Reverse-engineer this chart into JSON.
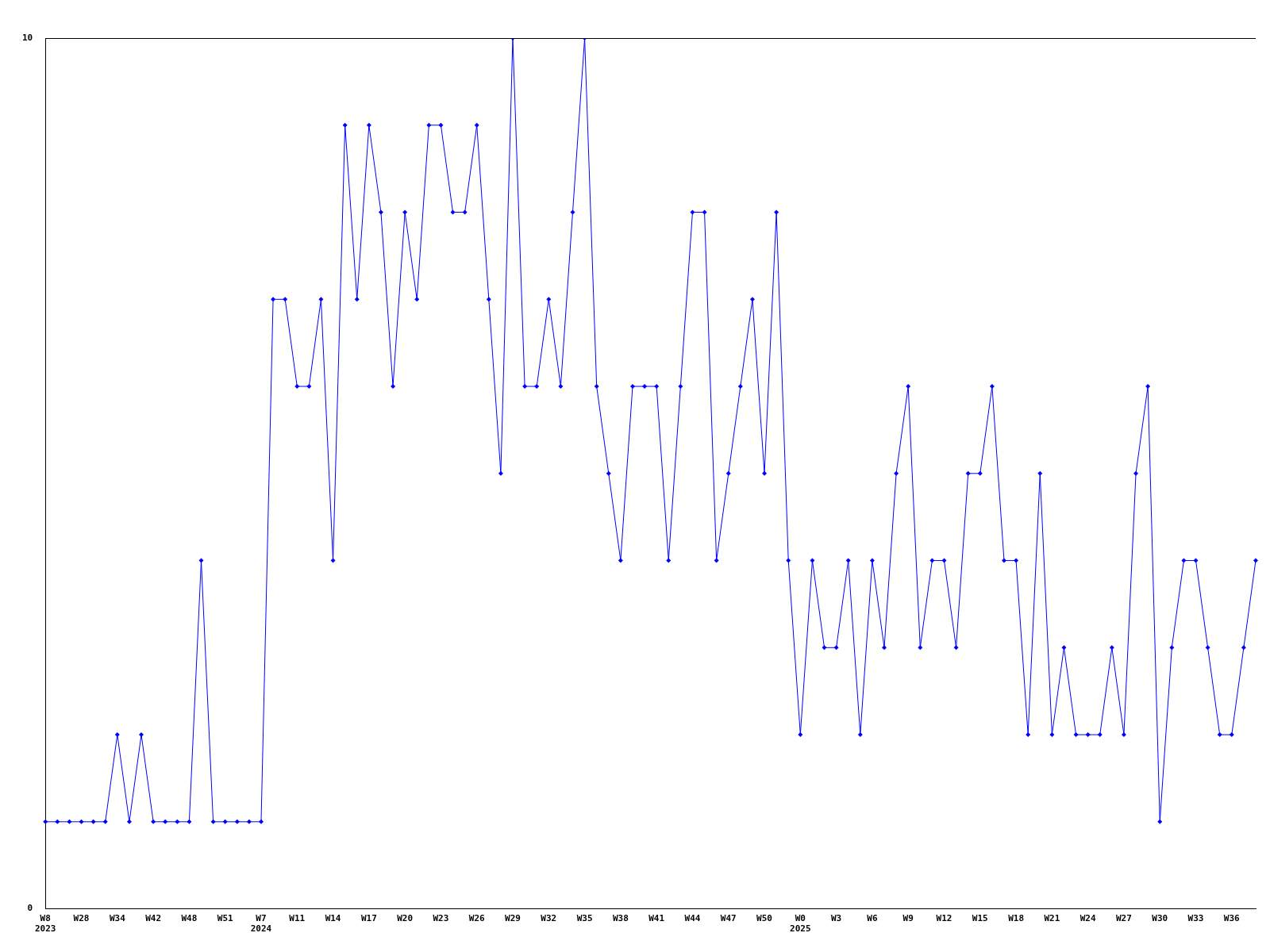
{
  "chart_data": {
    "type": "line",
    "categories": [
      "W8\n2023",
      null,
      null,
      "W28",
      null,
      null,
      "W34",
      null,
      null,
      "W42",
      null,
      null,
      "W48",
      null,
      null,
      "W51",
      null,
      null,
      "W7\n2024",
      null,
      null,
      "W11",
      null,
      null,
      "W14",
      null,
      null,
      "W17",
      null,
      null,
      "W20",
      null,
      null,
      "W23",
      null,
      null,
      "W26",
      null,
      null,
      "W29",
      null,
      null,
      "W32",
      null,
      null,
      "W35",
      null,
      null,
      "W38",
      null,
      null,
      "W41",
      null,
      null,
      "W44",
      null,
      null,
      "W47",
      null,
      null,
      "W50",
      null,
      null,
      "W0\n2025",
      null,
      null,
      "W3",
      null,
      null,
      "W6",
      null,
      null,
      "W9",
      null,
      null,
      "W12",
      null,
      null,
      "W15",
      null,
      null,
      "W18",
      null,
      null,
      "W21",
      null,
      null,
      "W24",
      null,
      null,
      "W27",
      null,
      null,
      "W30",
      null,
      null,
      "W33",
      null,
      null,
      "W36",
      null,
      null
    ],
    "series": [
      {
        "color": "#0000ff",
        "values": [
          1,
          1,
          1,
          1,
          1,
          1,
          2,
          1,
          2,
          1,
          1,
          1,
          1,
          4,
          1,
          1,
          1,
          1,
          1,
          7,
          7,
          6,
          6,
          7,
          4,
          9,
          7,
          9,
          8,
          6,
          8,
          7,
          9,
          9,
          8,
          8,
          9,
          7,
          5,
          10,
          6,
          6,
          7,
          6,
          8,
          10,
          6,
          5,
          4,
          6,
          6,
          6,
          4,
          6,
          8,
          8,
          4,
          5,
          6,
          7,
          5,
          8,
          4,
          2,
          4,
          3,
          3,
          4,
          2,
          4,
          3,
          5,
          6,
          3,
          4,
          4,
          3,
          5,
          5,
          6,
          4,
          4,
          2,
          5,
          2,
          3,
          2,
          2,
          2,
          3,
          2,
          5,
          6,
          1,
          3,
          4,
          4,
          3,
          2,
          2,
          3,
          4
        ]
      }
    ],
    "ylim": [
      0,
      10
    ],
    "yticks": [
      0,
      10
    ],
    "grid": false,
    "legend": false,
    "marker": "diamond",
    "line_style": "solid"
  }
}
